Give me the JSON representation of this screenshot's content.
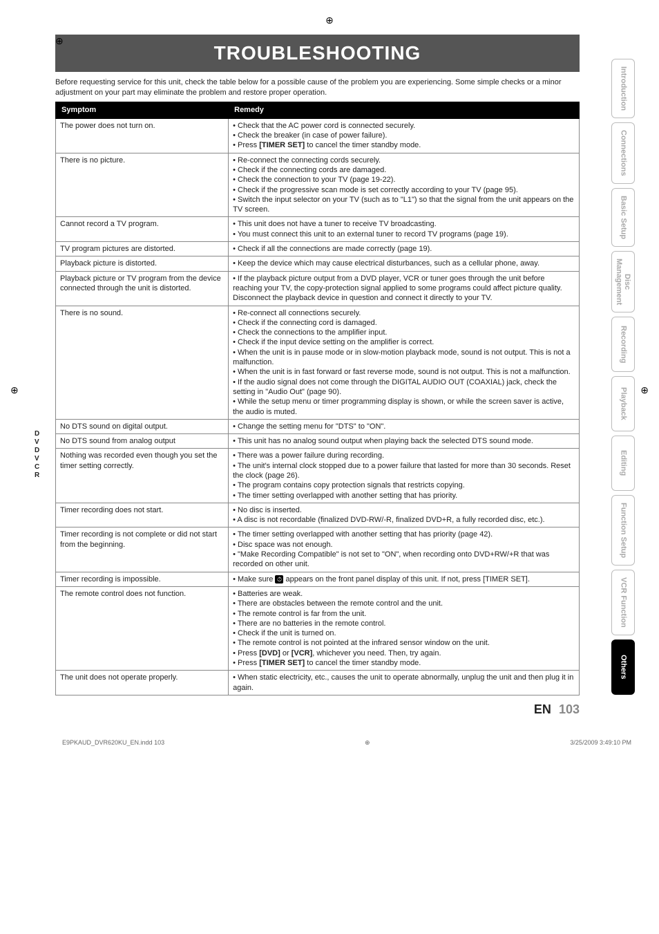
{
  "title": "TROUBLESHOOTING",
  "intro": "Before requesting service for this unit, check the table below for a possible cause of the problem you are experiencing. Some simple checks or a minor adjustment on your part may eliminate the problem and restore proper operation.",
  "headers": {
    "symptom": "Symptom",
    "remedy": "Remedy"
  },
  "side_letters": [
    "D",
    "V",
    "D",
    " ",
    "V",
    "C",
    "R"
  ],
  "rows": [
    {
      "symptom": "The power does not turn on.",
      "remedy": "• Check that the AC power cord is connected securely.\n• Check the breaker (in case of power failure).\n• Press [TIMER SET] to cancel the timer standby mode."
    },
    {
      "symptom": "There is no picture.",
      "remedy": "• Re-connect the connecting cords securely.\n• Check if the connecting cords are damaged.\n• Check the connection to your TV (page 19-22).\n• Check if the progressive scan mode is set correctly according to your TV (page 95).\n• Switch the input selector on your TV (such as to \"L1\") so that the signal from the unit appears on the TV screen."
    },
    {
      "symptom": "Cannot record a TV program.",
      "remedy": "• This unit does not have a tuner to receive TV broadcasting.\n• You must connect this unit to an external tuner to record TV programs (page 19)."
    },
    {
      "symptom": "TV program pictures are distorted.",
      "remedy": "• Check if all the connections are made correctly (page 19)."
    },
    {
      "symptom": "Playback picture is distorted.",
      "remedy": "• Keep the device which may cause electrical disturbances, such as a cellular phone, away."
    },
    {
      "symptom": "Playback picture or TV program from the device connected through the unit is distorted.",
      "remedy": "• If the playback picture output from a DVD player, VCR or tuner goes through the unit before reaching your TV, the copy-protection signal applied to some programs could affect picture quality. Disconnect the playback device in question and connect it directly to your TV."
    },
    {
      "symptom": "There is no sound.",
      "remedy": "• Re-connect all connections securely.\n• Check if the connecting cord is damaged.\n• Check the connections to the amplifier input.\n• Check if the input device setting on the amplifier is correct.\n• When the unit is in pause mode or in slow-motion playback mode, sound is not output. This is not a malfunction.\n• When the unit is in fast forward or fast reverse mode, sound is not output. This is not a malfunction.\n• If the audio signal does not come through the DIGITAL AUDIO OUT (COAXIAL) jack, check the setting in \"Audio Out\" (page 90).\n• While the setup menu or timer programming display is shown, or while the screen saver is active, the audio is muted."
    },
    {
      "symptom": "No DTS sound on digital output.",
      "remedy": "• Change the setting menu for \"DTS\" to \"ON\"."
    },
    {
      "symptom": "No DTS sound from analog output",
      "remedy": "• This unit has no analog sound output when playing back the selected DTS sound mode."
    },
    {
      "symptom": "Nothing was recorded even though you set the timer setting correctly.",
      "remedy": "• There was a power failure during recording.\n• The unit's internal clock stopped due to a power failure that lasted for more than 30 seconds. Reset the clock (page 26).\n• The program contains copy protection signals that restricts copying.\n• The timer setting overlapped with another setting that has priority."
    },
    {
      "symptom": "Timer recording does not start.",
      "remedy": "• No disc is inserted.\n• A disc is not recordable (finalized DVD-RW/-R, finalized DVD+R, a fully recorded disc, etc.)."
    },
    {
      "symptom": "Timer recording is not complete or did not start from the beginning.",
      "remedy": "• The timer setting overlapped with another setting that has priority (page 42).\n• Disc space was not enough.\n• \"Make Recording Compatible\" is not set to \"ON\", when recording onto DVD+RW/+R that was recorded on other unit."
    },
    {
      "symptom": "Timer recording is impossible.",
      "remedy_pre": "• Make sure ",
      "remedy_post": " appears on the front panel display of this unit. If not, press [TIMER SET].",
      "has_icon": true
    },
    {
      "symptom": "The remote control does not function.",
      "remedy": "• Batteries are weak.\n• There are obstacles between the remote control and the unit.\n• The remote control is far from the unit.\n• There are no batteries in the remote control.\n• Check if the unit is turned on.\n• The remote control is not pointed at the infrared sensor window on the unit.\n• Press [DVD] or [VCR], whichever you need. Then, try again.\n• Press [TIMER SET] to cancel the timer standby mode."
    },
    {
      "symptom": "The unit does not operate properly.",
      "remedy": "• When static electricity, etc., causes the unit to operate abnormally, unplug the unit and then plug it in again."
    }
  ],
  "tabs": [
    "Introduction",
    "Connections",
    "Basic Setup",
    "Disc Management",
    "Recording",
    "Playback",
    "Editing",
    "Function Setup",
    "VCR Function",
    "Others"
  ],
  "page": {
    "en": "EN",
    "num": "103"
  },
  "footer": {
    "left": "E9PKAUD_DVR620KU_EN.indd   103",
    "right": "3/25/2009   3:49:10 PM"
  },
  "colors": {
    "title_bg": "#555555",
    "header_bg": "#000000",
    "tab_border": "#bbbbbb",
    "tab_text": "#aaaaaa",
    "active_tab_bg": "#000000"
  }
}
